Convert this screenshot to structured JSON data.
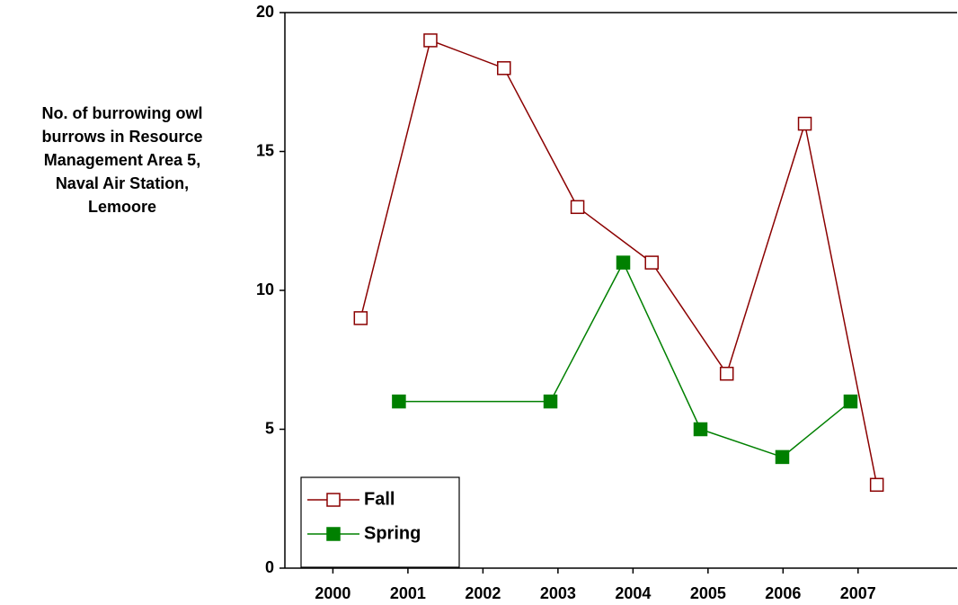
{
  "chart_data": {
    "type": "line",
    "ylabel_lines": [
      "No. of burrowing owl",
      "burrows in Resource",
      "Management Area 5,",
      "Naval Air Station,",
      "Lemoore"
    ],
    "series": [
      {
        "name": "Fall",
        "color": "#8b0000",
        "marker": "open-square",
        "x": [
          2000.37,
          2001.3,
          2002.28,
          2003.26,
          2004.25,
          2005.25,
          2006.29,
          2007.25
        ],
        "values": [
          9,
          19,
          18,
          13,
          11,
          7,
          16,
          3
        ]
      },
      {
        "name": "Spring",
        "color": "#008000",
        "marker": "filled-square",
        "x": [
          2000.88,
          2002.9,
          2003.87,
          2004.9,
          2005.99,
          2006.9
        ],
        "values": [
          6,
          6,
          11,
          5,
          4,
          6
        ]
      }
    ],
    "xlim": [
      1999.36,
      2008.32
    ],
    "xticks": [
      2000,
      2001,
      2002,
      2003,
      2004,
      2005,
      2006,
      2007
    ],
    "ylim": [
      0,
      20
    ],
    "yticks": [
      0,
      5,
      10,
      15,
      20
    ],
    "legend": "lower-left"
  }
}
